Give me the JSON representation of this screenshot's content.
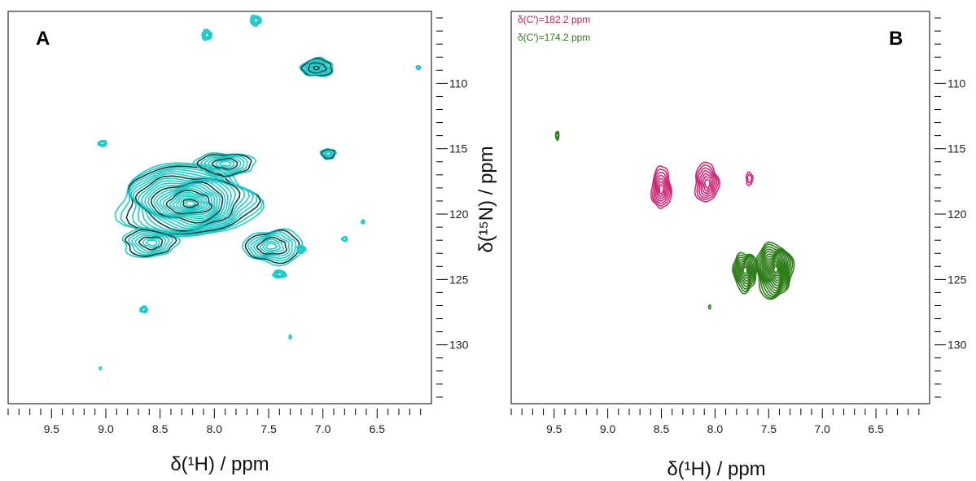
{
  "chart_data": [
    {
      "type": "contour",
      "panel_label": "A",
      "xlabel": "δ(¹H) / ppm",
      "ylabel": "δ(¹⁵N) / ppm",
      "x_range_reversed": [
        9.9,
        6.0
      ],
      "y_range_reversed": [
        104.5,
        134.5
      ],
      "x_ticks": [
        9.5,
        9.0,
        8.5,
        8.0,
        7.5,
        7.0,
        6.5
      ],
      "x_tick_labels": [
        "9.5",
        "9.0",
        "8.5",
        "8.0",
        "7.5",
        "7.0",
        "6.5"
      ],
      "y_ticks": [
        110,
        115,
        120,
        125,
        130
      ],
      "y_tick_labels": [
        "110",
        "115",
        "120",
        "125",
        "130"
      ],
      "y_axis_side": "right",
      "colors": [
        "#20c9c6",
        "#0b3b3b"
      ],
      "peaks": [
        {
          "h": 8.25,
          "n": 119.0,
          "wh": 1.28,
          "wn": 5.6,
          "levels": 24,
          "main": true
        },
        {
          "h": 8.6,
          "n": 122.2,
          "wh": 0.5,
          "wn": 2.2,
          "levels": 8,
          "main": false
        },
        {
          "h": 7.9,
          "n": 116.2,
          "wh": 0.55,
          "wn": 1.8,
          "levels": 8,
          "main": false
        },
        {
          "h": 7.45,
          "n": 122.5,
          "wh": 0.55,
          "wn": 2.6,
          "levels": 9,
          "main": false
        },
        {
          "h": 7.05,
          "n": 108.8,
          "wh": 0.3,
          "wn": 1.4,
          "levels": 10,
          "main": false
        },
        {
          "h": 7.4,
          "n": 124.6,
          "wh": 0.12,
          "wn": 0.6,
          "levels": 4,
          "main": false
        },
        {
          "h": 7.2,
          "n": 122.7,
          "wh": 0.08,
          "wn": 0.6,
          "levels": 4,
          "main": false
        },
        {
          "h": 6.95,
          "n": 115.4,
          "wh": 0.14,
          "wn": 0.8,
          "levels": 5,
          "main": false
        },
        {
          "h": 9.03,
          "n": 114.6,
          "wh": 0.08,
          "wn": 0.45,
          "levels": 3,
          "main": false
        },
        {
          "h": 8.65,
          "n": 127.3,
          "wh": 0.07,
          "wn": 0.5,
          "levels": 3,
          "main": false
        },
        {
          "h": 8.07,
          "n": 106.3,
          "wh": 0.09,
          "wn": 0.8,
          "levels": 4,
          "main": false
        },
        {
          "h": 7.62,
          "n": 105.2,
          "wh": 0.1,
          "wn": 0.8,
          "levels": 4,
          "main": false
        },
        {
          "h": 6.12,
          "n": 108.8,
          "wh": 0.04,
          "wn": 0.3,
          "levels": 2,
          "main": false
        },
        {
          "h": 6.8,
          "n": 121.9,
          "wh": 0.05,
          "wn": 0.35,
          "levels": 2,
          "main": false
        },
        {
          "h": 6.63,
          "n": 120.6,
          "wh": 0.03,
          "wn": 0.3,
          "levels": 2,
          "main": false
        },
        {
          "h": 7.3,
          "n": 129.4,
          "wh": 0.02,
          "wn": 0.3,
          "levels": 2,
          "main": false
        },
        {
          "h": 9.05,
          "n": 131.8,
          "wh": 0.02,
          "wn": 0.2,
          "levels": 1,
          "main": false
        }
      ]
    },
    {
      "type": "contour",
      "panel_label": "B",
      "xlabel": "δ(¹H) / ppm",
      "ylabel": "",
      "x_range_reversed": [
        9.9,
        6.0
      ],
      "y_range_reversed": [
        104.5,
        134.5
      ],
      "x_ticks": [
        9.5,
        9.0,
        8.5,
        8.0,
        7.5,
        7.0,
        6.5
      ],
      "x_tick_labels": [
        "9.5",
        "9.0",
        "8.5",
        "8.0",
        "7.5",
        "7.0",
        "6.5"
      ],
      "y_ticks": [
        110,
        115,
        120,
        125,
        130
      ],
      "y_tick_labels": [
        "110",
        "115",
        "120",
        "125",
        "130"
      ],
      "y_axis_side": "right",
      "legend_placement": "top-left",
      "series": [
        {
          "name": "δ(C′)=182.2 ppm",
          "color": "#cc2a78",
          "peaks": [
            {
              "h": 8.5,
              "n": 118.0,
              "wh": 0.18,
              "wn": 3.2,
              "levels": 7
            },
            {
              "h": 8.08,
              "n": 117.6,
              "wh": 0.22,
              "wn": 3.0,
              "levels": 7
            },
            {
              "h": 7.68,
              "n": 117.3,
              "wh": 0.06,
              "wn": 1.0,
              "levels": 2
            }
          ]
        },
        {
          "name": "δ(C′)=174.2 ppm",
          "color": "#2e7d1a",
          "peaks": [
            {
              "h": 7.45,
              "n": 124.3,
              "wh": 0.34,
              "wn": 4.2,
              "levels": 14
            },
            {
              "h": 7.72,
              "n": 124.4,
              "wh": 0.22,
              "wn": 3.0,
              "levels": 9
            },
            {
              "h": 9.47,
              "n": 114.0,
              "wh": 0.03,
              "wn": 0.65,
              "levels": 2
            },
            {
              "h": 8.05,
              "n": 127.1,
              "wh": 0.01,
              "wn": 0.3,
              "levels": 1
            }
          ]
        }
      ]
    }
  ]
}
